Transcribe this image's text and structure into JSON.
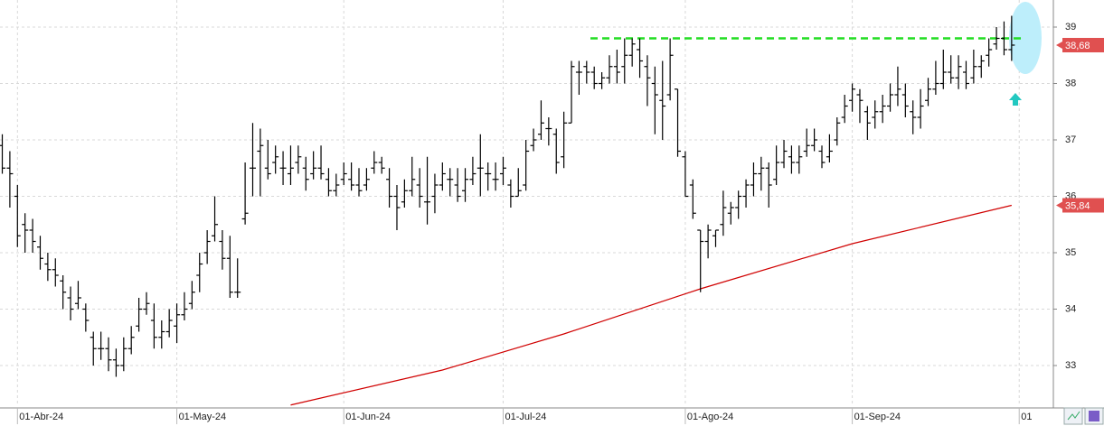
{
  "chart_data": {
    "type": "ohlc",
    "color": "#000000",
    "grid": true,
    "ylim": [
      32.28,
      39.48
    ],
    "yticks": [
      33,
      34,
      35,
      36,
      37,
      38,
      39
    ],
    "xlim": [
      -0.3,
      138.5
    ],
    "xticks": [
      {
        "value": 2,
        "label": "01-Abr-24"
      },
      {
        "value": 23,
        "label": "01-May-24"
      },
      {
        "value": 45,
        "label": "01-Jun-24"
      },
      {
        "value": 66,
        "label": "01-Jul-24"
      },
      {
        "value": 90,
        "label": "01-Ago-24"
      },
      {
        "value": 112,
        "label": "01-Sep-24"
      },
      {
        "value": 134,
        "label": "01"
      }
    ],
    "ohlc": [
      [
        36.9,
        37.1,
        36.4,
        36.5
      ],
      [
        36.5,
        36.8,
        35.8,
        36.4
      ],
      [
        36.0,
        36.2,
        35.1,
        35.3
      ],
      [
        35.5,
        35.7,
        35.0,
        35.4
      ],
      [
        35.4,
        35.6,
        35.0,
        35.2
      ],
      [
        35.1,
        35.3,
        34.7,
        34.9
      ],
      [
        34.8,
        35.0,
        34.5,
        34.7
      ],
      [
        34.7,
        34.9,
        34.4,
        34.6
      ],
      [
        34.5,
        34.6,
        34.0,
        34.3
      ],
      [
        34.2,
        34.4,
        33.8,
        34.0
      ],
      [
        34.1,
        34.5,
        34.0,
        34.2
      ],
      [
        34.0,
        34.1,
        33.6,
        33.8
      ],
      [
        33.5,
        33.6,
        33.0,
        33.3
      ],
      [
        33.3,
        33.6,
        33.1,
        33.3
      ],
      [
        33.3,
        33.5,
        32.9,
        33.1
      ],
      [
        33.1,
        33.3,
        32.8,
        33.0
      ],
      [
        33.0,
        33.5,
        32.9,
        33.3
      ],
      [
        33.3,
        33.7,
        33.2,
        33.5
      ],
      [
        33.7,
        34.2,
        33.6,
        34.0
      ],
      [
        34.0,
        34.3,
        33.9,
        34.1
      ],
      [
        33.8,
        34.1,
        33.3,
        33.5
      ],
      [
        33.5,
        33.8,
        33.3,
        33.6
      ],
      [
        33.6,
        34.0,
        33.5,
        33.8
      ],
      [
        33.7,
        34.1,
        33.4,
        33.9
      ],
      [
        33.9,
        34.3,
        33.8,
        34.0
      ],
      [
        34.1,
        34.5,
        34.0,
        34.3
      ],
      [
        34.6,
        35.0,
        34.3,
        34.8
      ],
      [
        35.0,
        35.4,
        34.8,
        35.2
      ],
      [
        35.3,
        36.0,
        35.2,
        35.5
      ],
      [
        35.2,
        35.4,
        34.7,
        34.9
      ],
      [
        34.9,
        35.3,
        34.2,
        34.3
      ],
      [
        34.3,
        34.9,
        34.2,
        34.3
      ],
      [
        35.6,
        36.6,
        35.5,
        35.7
      ],
      [
        36.5,
        37.3,
        36.0,
        36.5
      ],
      [
        36.8,
        37.2,
        36.0,
        36.9
      ],
      [
        36.5,
        37.0,
        36.3,
        36.4
      ],
      [
        36.6,
        36.9,
        36.4,
        36.7
      ],
      [
        36.5,
        36.8,
        36.2,
        36.5
      ],
      [
        36.4,
        36.9,
        36.2,
        36.5
      ],
      [
        36.6,
        36.9,
        36.4,
        36.7
      ],
      [
        36.5,
        36.7,
        36.1,
        36.3
      ],
      [
        36.4,
        36.8,
        36.3,
        36.5
      ],
      [
        36.5,
        36.9,
        36.3,
        36.4
      ],
      [
        36.3,
        36.5,
        36.0,
        36.1
      ],
      [
        36.1,
        36.4,
        36.0,
        36.2
      ],
      [
        36.3,
        36.6,
        36.2,
        36.4
      ],
      [
        36.3,
        36.6,
        36.1,
        36.2
      ],
      [
        36.2,
        36.5,
        36.0,
        36.1
      ],
      [
        36.2,
        36.5,
        36.1,
        36.3
      ],
      [
        36.5,
        36.8,
        36.4,
        36.6
      ],
      [
        36.6,
        36.7,
        36.4,
        36.5
      ],
      [
        36.3,
        36.5,
        35.8,
        36.0
      ],
      [
        36.0,
        36.2,
        35.4,
        35.8
      ],
      [
        35.9,
        36.3,
        35.8,
        36.1
      ],
      [
        36.1,
        36.7,
        36.0,
        36.3
      ],
      [
        36.2,
        36.5,
        35.8,
        36.0
      ],
      [
        35.9,
        36.7,
        35.5,
        35.9
      ],
      [
        36.0,
        36.4,
        35.7,
        36.2
      ],
      [
        36.2,
        36.6,
        36.1,
        36.4
      ],
      [
        36.3,
        36.5,
        36.0,
        36.3
      ],
      [
        36.2,
        36.5,
        35.9,
        36.0
      ],
      [
        36.1,
        36.5,
        35.9,
        36.3
      ],
      [
        36.3,
        36.7,
        36.2,
        36.4
      ],
      [
        36.5,
        37.1,
        36.0,
        36.5
      ],
      [
        36.4,
        36.6,
        36.1,
        36.4
      ],
      [
        36.3,
        36.6,
        36.1,
        36.3
      ],
      [
        36.4,
        36.7,
        36.2,
        36.5
      ],
      [
        36.2,
        36.3,
        35.8,
        36.0
      ],
      [
        36.0,
        36.5,
        36.0,
        36.1
      ],
      [
        36.2,
        37.0,
        36.1,
        36.8
      ],
      [
        36.9,
        37.2,
        36.8,
        37.0
      ],
      [
        37.1,
        37.7,
        37.0,
        37.3
      ],
      [
        37.2,
        37.4,
        36.9,
        37.2
      ],
      [
        37.1,
        37.2,
        36.4,
        36.6
      ],
      [
        36.7,
        37.5,
        36.5,
        37.3
      ],
      [
        37.3,
        38.4,
        37.3,
        38.3
      ],
      [
        38.2,
        38.4,
        37.8,
        38.2
      ],
      [
        38.3,
        38.4,
        38.0,
        38.2
      ],
      [
        38.2,
        38.3,
        37.9,
        38.0
      ],
      [
        38.0,
        38.2,
        37.9,
        38.1
      ],
      [
        38.1,
        38.5,
        38.0,
        38.3
      ],
      [
        38.3,
        38.6,
        38.0,
        38.2
      ],
      [
        38.3,
        38.8,
        38.0,
        38.5
      ],
      [
        38.5,
        38.8,
        38.3,
        38.7
      ],
      [
        38.6,
        38.8,
        38.1,
        38.4
      ],
      [
        38.3,
        38.5,
        37.6,
        38.1
      ],
      [
        38.0,
        38.3,
        37.1,
        37.8
      ],
      [
        37.7,
        38.4,
        37.0,
        37.6
      ],
      [
        37.8,
        38.8,
        37.7,
        38.5
      ],
      [
        37.9,
        37.9,
        36.7,
        36.8
      ],
      [
        36.7,
        36.8,
        36.0,
        36.0
      ],
      [
        36.2,
        36.3,
        35.6,
        35.7
      ],
      [
        35.4,
        35.4,
        34.3,
        35.2
      ],
      [
        35.2,
        35.5,
        34.9,
        35.4
      ],
      [
        35.3,
        35.4,
        35.1,
        35.4
      ],
      [
        35.5,
        36.1,
        35.3,
        35.8
      ],
      [
        35.7,
        35.9,
        35.5,
        35.8
      ],
      [
        35.8,
        36.1,
        35.6,
        36.0
      ],
      [
        36.0,
        36.3,
        35.8,
        36.2
      ],
      [
        36.2,
        36.6,
        36.0,
        36.4
      ],
      [
        36.4,
        36.7,
        36.1,
        36.5
      ],
      [
        36.5,
        36.6,
        35.8,
        36.2
      ],
      [
        36.3,
        36.9,
        36.2,
        36.6
      ],
      [
        36.6,
        37.0,
        36.5,
        36.8
      ],
      [
        36.7,
        36.9,
        36.4,
        36.6
      ],
      [
        36.6,
        36.9,
        36.4,
        36.7
      ],
      [
        36.8,
        37.2,
        36.7,
        36.9
      ],
      [
        36.9,
        37.2,
        36.8,
        37.0
      ],
      [
        36.8,
        36.9,
        36.5,
        36.6
      ],
      [
        36.7,
        37.1,
        36.6,
        36.8
      ],
      [
        37.0,
        37.4,
        36.9,
        37.3
      ],
      [
        37.4,
        37.8,
        37.3,
        37.6
      ],
      [
        37.7,
        38.0,
        37.5,
        37.9
      ],
      [
        37.8,
        37.9,
        37.3,
        37.7
      ],
      [
        37.5,
        37.6,
        37.0,
        37.3
      ],
      [
        37.4,
        37.7,
        37.2,
        37.5
      ],
      [
        37.5,
        37.8,
        37.3,
        37.6
      ],
      [
        37.6,
        38.0,
        37.5,
        37.8
      ],
      [
        37.8,
        38.3,
        37.6,
        37.9
      ],
      [
        37.8,
        38.0,
        37.4,
        37.6
      ],
      [
        37.5,
        37.7,
        37.1,
        37.4
      ],
      [
        37.4,
        37.9,
        37.2,
        37.6
      ],
      [
        37.7,
        38.1,
        37.6,
        37.9
      ],
      [
        37.9,
        38.4,
        37.8,
        38.0
      ],
      [
        38.0,
        38.6,
        37.9,
        38.2
      ],
      [
        38.2,
        38.5,
        38.0,
        38.1
      ],
      [
        38.1,
        38.5,
        37.9,
        38.3
      ],
      [
        38.2,
        38.4,
        37.9,
        38.0
      ],
      [
        38.1,
        38.6,
        38.0,
        38.3
      ],
      [
        38.3,
        38.5,
        38.1,
        38.4
      ],
      [
        38.5,
        38.8,
        38.3,
        38.6
      ],
      [
        38.7,
        39.0,
        38.6,
        38.8
      ],
      [
        38.8,
        39.1,
        38.5,
        38.6
      ],
      [
        38.6,
        39.2,
        38.4,
        38.68
      ]
    ],
    "ma": {
      "color": "#d00000",
      "x": [
        38,
        58,
        74,
        92,
        112,
        133
      ],
      "values": [
        32.3,
        32.92,
        33.56,
        34.36,
        35.16,
        35.84
      ]
    },
    "resistance": {
      "color": "#22dd22",
      "value": 38.8,
      "x": [
        77.5,
        134.6
      ]
    },
    "price_labels": [
      {
        "value": 38.68,
        "label": "38,68",
        "color": "#e05050"
      },
      {
        "value": 35.84,
        "label": "35,84",
        "color": "#e05050"
      }
    ]
  }
}
